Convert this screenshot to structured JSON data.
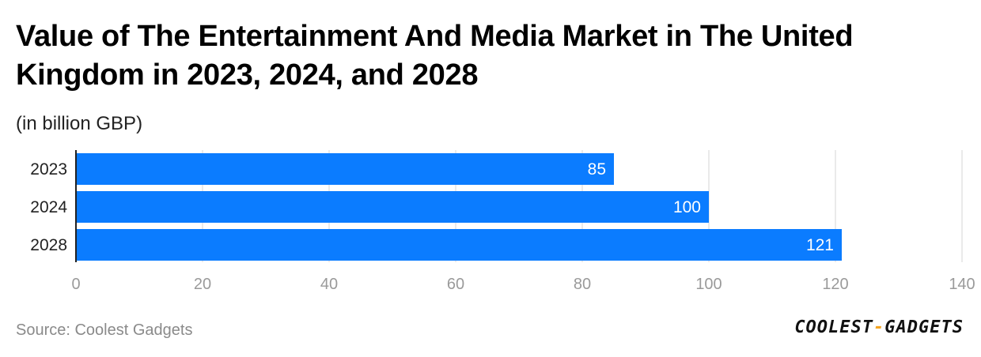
{
  "title": "Value of The Entertainment And Media Market in The United Kingdom in 2023, 2024, and 2028",
  "subtitle": "(in billion GBP)",
  "source": "Source: Coolest Gadgets",
  "logo": {
    "part1": "COOLEST",
    "separator": "-",
    "part2": "GADGETS"
  },
  "colors": {
    "bar": "#0b7cff",
    "grid": "#e3e3e3",
    "axis": "#222222",
    "tick_label": "#9a9a9a",
    "bar_label": "#ffffff",
    "category_label": "#222222"
  },
  "chart_data": {
    "type": "bar",
    "orientation": "horizontal",
    "categories": [
      "2023",
      "2024",
      "2028"
    ],
    "values": [
      85,
      100,
      121
    ],
    "value_labels": [
      "85",
      "100",
      "121"
    ],
    "xlim": [
      0,
      140
    ],
    "xticks": [
      0,
      20,
      40,
      60,
      80,
      100,
      120,
      140
    ],
    "xlabel": "",
    "ylabel": "",
    "grid": true,
    "legend": "none"
  }
}
